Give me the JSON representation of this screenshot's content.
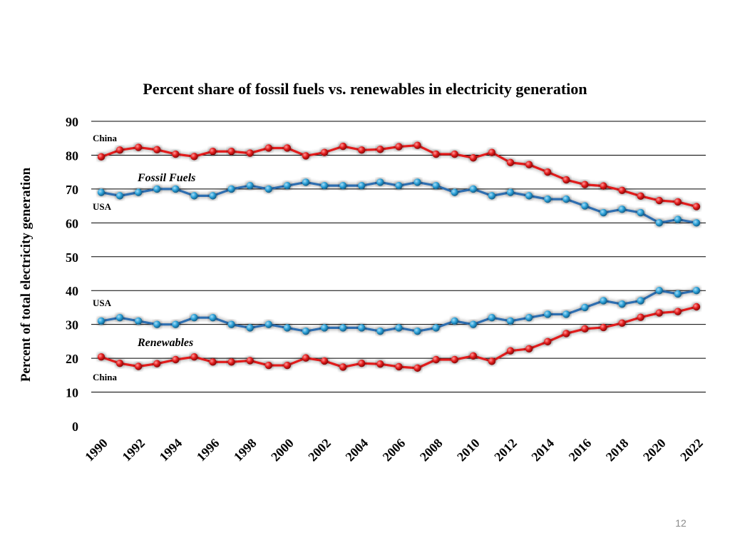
{
  "chart_data": {
    "type": "line",
    "title": "Percent share of fossil fuels vs. renewables in electricity generation",
    "xlabel": "",
    "ylabel": "Percent of total electricity generation",
    "ylim": [
      0,
      90
    ],
    "yticks": [
      0,
      10,
      20,
      30,
      40,
      50,
      60,
      70,
      80,
      90
    ],
    "xticks": [
      "1990",
      "1992",
      "1994",
      "1996",
      "1998",
      "2000",
      "2002",
      "2004",
      "2006",
      "2008",
      "2010",
      "2012",
      "2014",
      "2016",
      "2018",
      "2020",
      "2022"
    ],
    "x": [
      1990,
      1991,
      1992,
      1993,
      1994,
      1995,
      1996,
      1997,
      1998,
      1999,
      2000,
      2001,
      2002,
      2003,
      2004,
      2005,
      2006,
      2007,
      2008,
      2009,
      2010,
      2011,
      2012,
      2013,
      2014,
      2015,
      2016,
      2017,
      2018,
      2019,
      2020,
      2021,
      2022
    ],
    "grid": true,
    "series": [
      {
        "name": "China Fossil Fuels",
        "color": "#e11a1a",
        "values": [
          79.5,
          81.5,
          82.3,
          81.6,
          80.3,
          79.6,
          81.1,
          81.1,
          80.6,
          82.1,
          82.1,
          79.8,
          80.8,
          82.6,
          81.5,
          81.7,
          82.5,
          82.9,
          80.3,
          80.3,
          79.2,
          80.8,
          77.8,
          77.2,
          75.0,
          72.7,
          71.3,
          70.9,
          69.6,
          67.9,
          66.6,
          66.2,
          64.8
        ]
      },
      {
        "name": "USA Fossil Fuels",
        "color": "#2e6eb0",
        "values": [
          69,
          68,
          69,
          70,
          70,
          68,
          68,
          70,
          71,
          70,
          71,
          72,
          71,
          71,
          71,
          72,
          71,
          72,
          71,
          69,
          70,
          68,
          69,
          68,
          67,
          67,
          65,
          63,
          64,
          63,
          60,
          61,
          60
        ]
      },
      {
        "name": "USA Renewables",
        "color": "#2e6eb0",
        "values": [
          31,
          32,
          31,
          30,
          30,
          32,
          32,
          30,
          29,
          30,
          29,
          28,
          29,
          29,
          29,
          28,
          29,
          28,
          29,
          31,
          30,
          32,
          31,
          32,
          33,
          33,
          35,
          37,
          36,
          37,
          40,
          39,
          40
        ]
      },
      {
        "name": "China Renewables",
        "color": "#e11a1a",
        "values": [
          20.4,
          18.5,
          17.6,
          18.4,
          19.6,
          20.4,
          18.9,
          18.9,
          19.3,
          17.9,
          17.9,
          20.1,
          19.2,
          17.4,
          18.5,
          18.3,
          17.5,
          17.1,
          19.6,
          19.6,
          20.7,
          19.1,
          22.2,
          22.8,
          24.9,
          27.3,
          28.7,
          29.1,
          30.4,
          32.1,
          33.4,
          33.8,
          35.2
        ]
      }
    ],
    "annotations": {
      "china_fossil": "China",
      "fossil_fuels": "Fossil Fuels",
      "usa_fossil": "USA",
      "usa_renew": "USA",
      "renewables": "Renewables",
      "china_renew": "China"
    }
  },
  "page": {
    "number": "12"
  }
}
